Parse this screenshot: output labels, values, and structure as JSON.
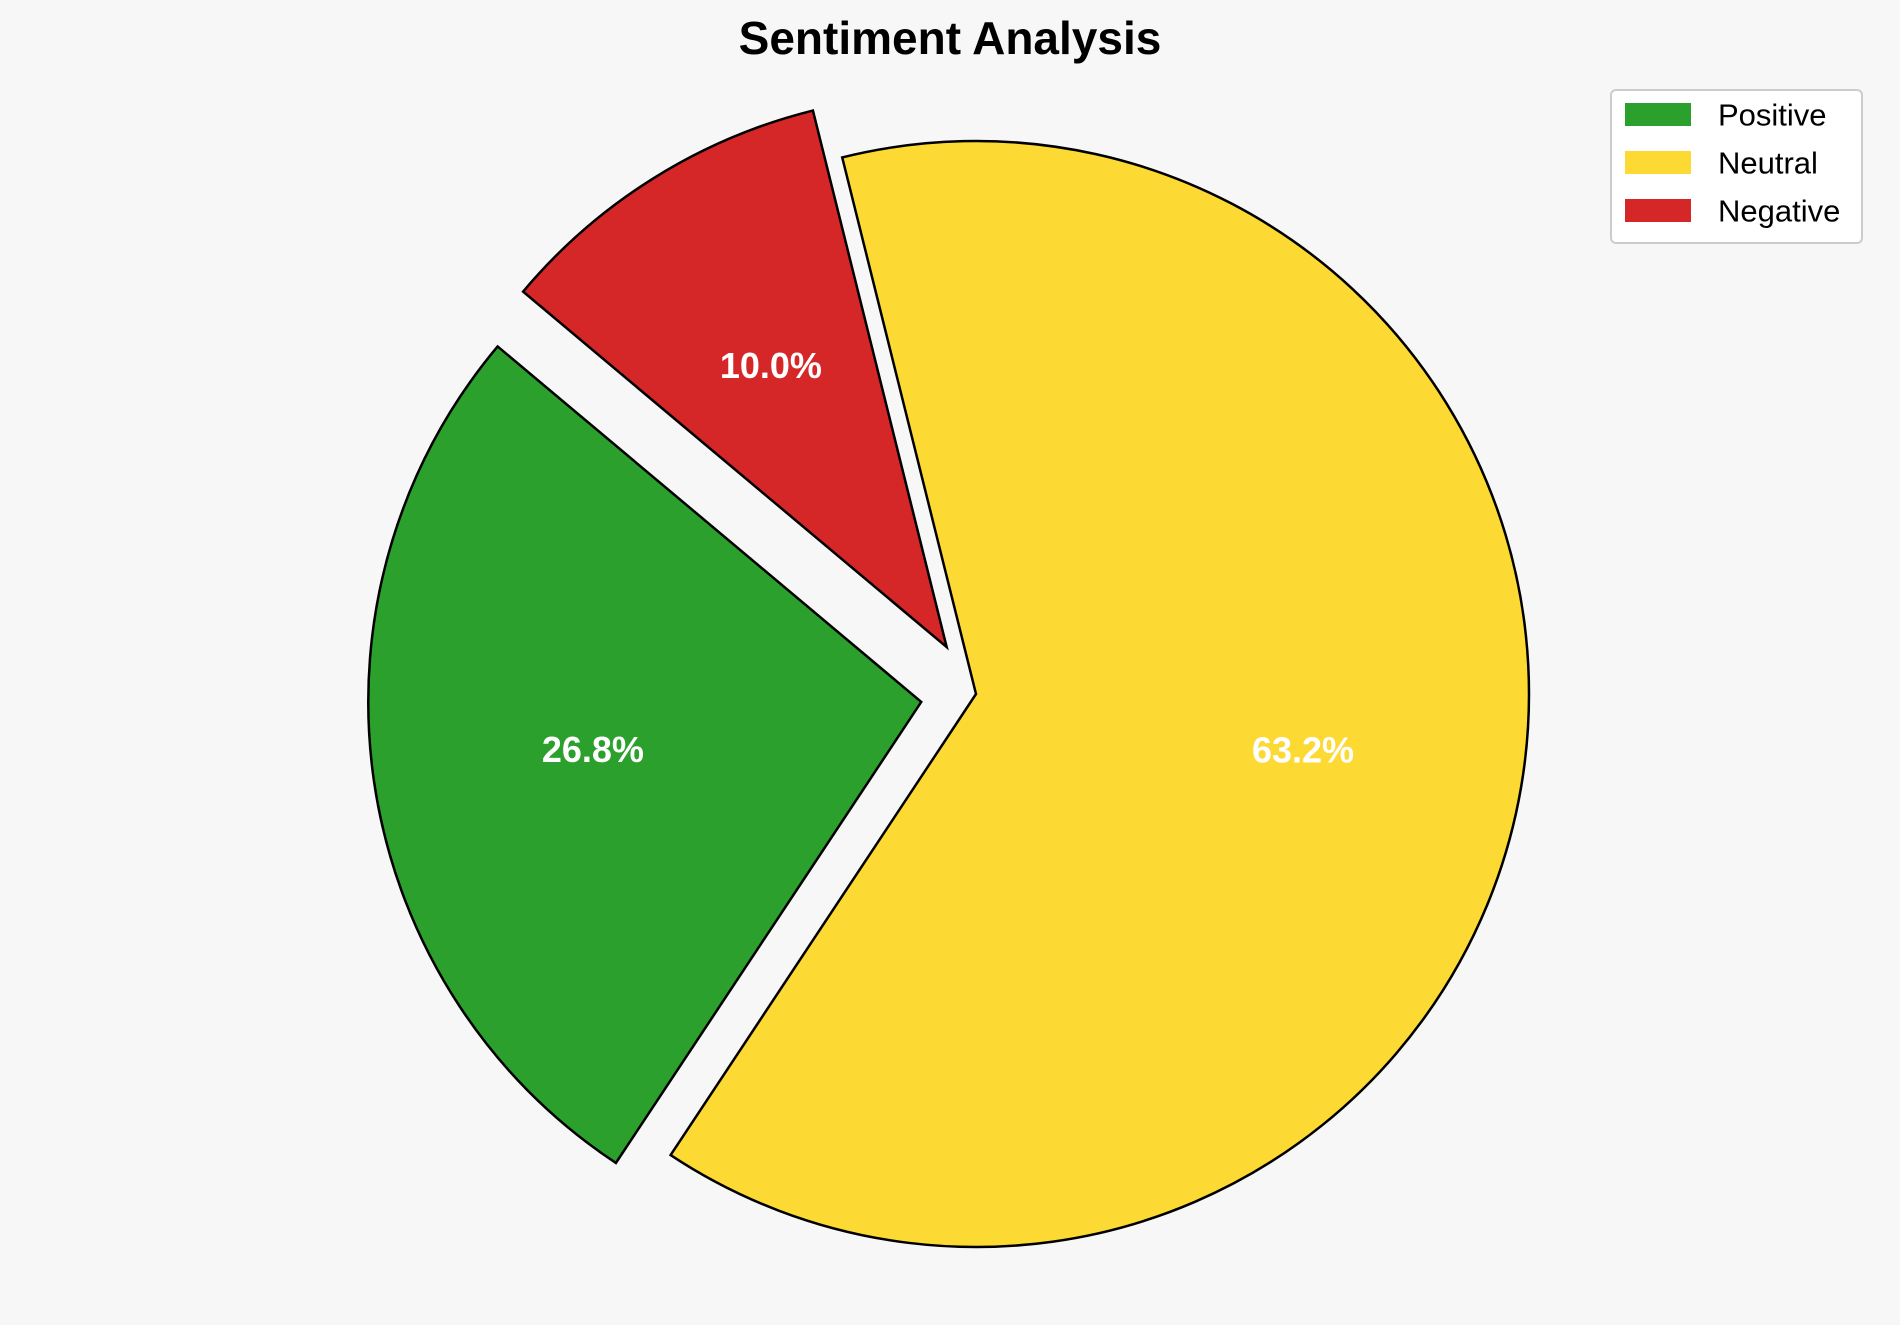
{
  "chart_data": {
    "type": "pie",
    "title": "Sentiment Analysis",
    "categories": [
      "Positive",
      "Neutral",
      "Negative"
    ],
    "values": [
      26.8,
      63.2,
      10.0
    ],
    "percent_labels": [
      "26.8%",
      "63.2%",
      "10.0%"
    ],
    "colors": [
      "#2ca02c",
      "#fdd933",
      "#d62728"
    ],
    "exploded": [
      "Positive",
      "Negative"
    ],
    "start_angle_deg": 140,
    "counterclockwise": true,
    "legend_position": "top-right",
    "background_color": "#f7f7f7"
  }
}
